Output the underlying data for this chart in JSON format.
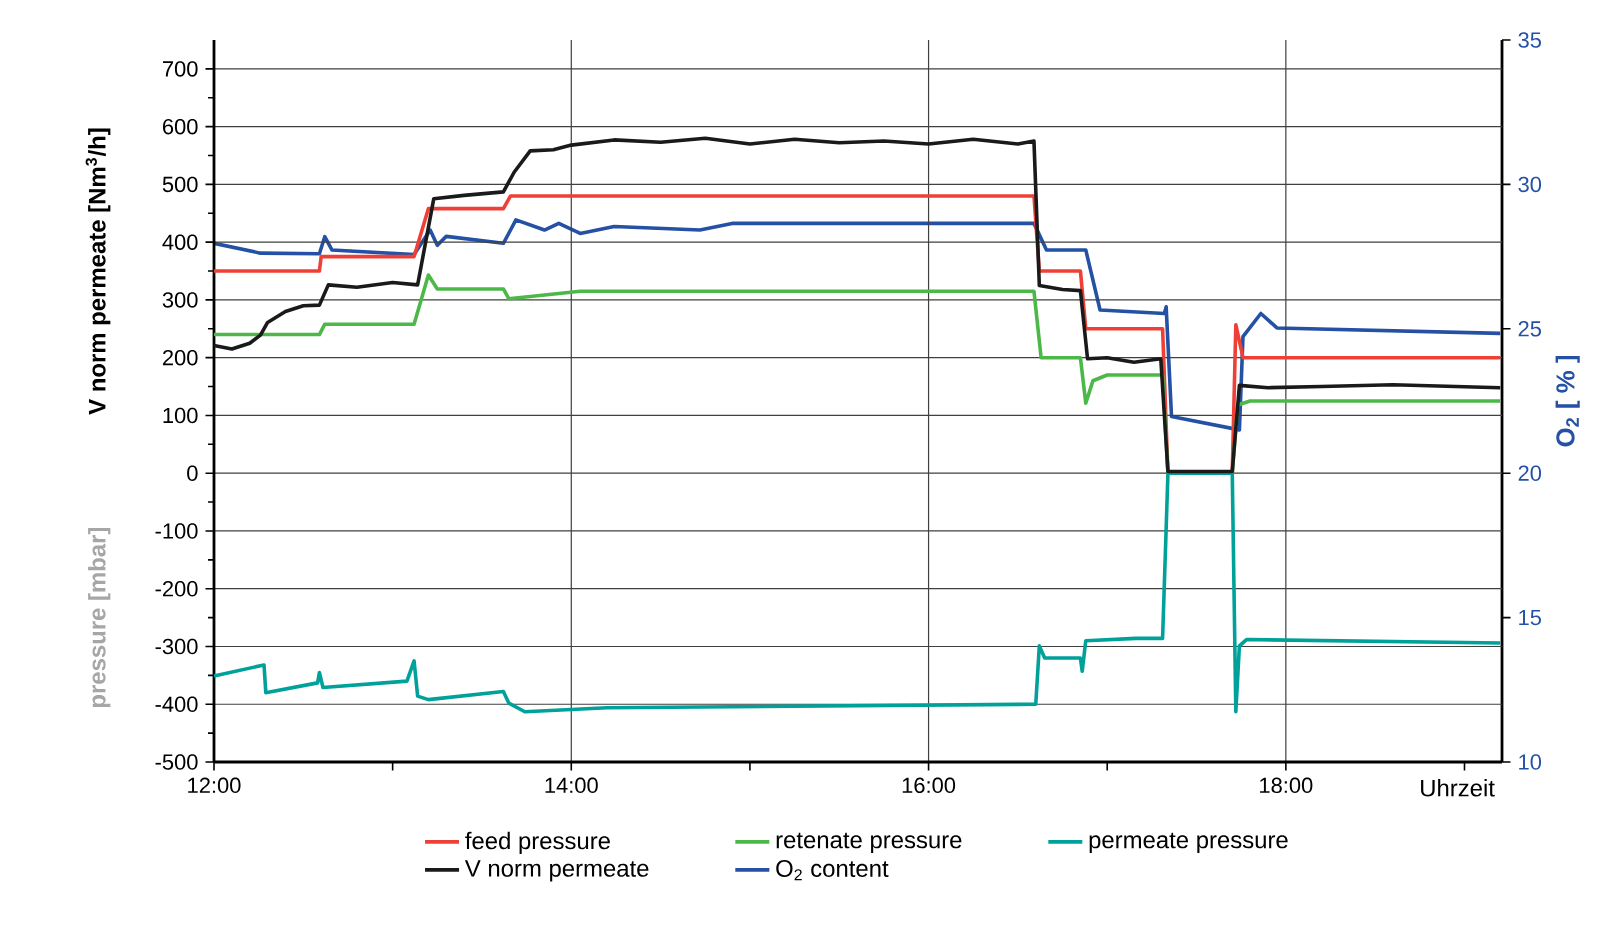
{
  "chart_data": {
    "type": "line",
    "xlabel": "Uhrzeit",
    "ylabel": "V norm permeate [Nm$^{3}$/h]",
    "y2label": "O$_{2}$ [ % ]",
    "annotations": [
      "pressure [mbar]"
    ],
    "xlim": [
      12,
      19.21
    ],
    "xticks": [
      {
        "value": 12,
        "label": "12:00"
      },
      {
        "value": 13,
        "label": null
      },
      {
        "value": 14,
        "label": "14:00"
      },
      {
        "value": 15,
        "label": null
      },
      {
        "value": 16,
        "label": "16:00"
      },
      {
        "value": 17,
        "label": null
      },
      {
        "value": 18,
        "label": "18:00"
      },
      {
        "value": 19,
        "label": null
      }
    ],
    "ylim": [
      -500,
      750
    ],
    "yticks": [
      -500,
      {
        "value": -450,
        "label": null
      },
      -400,
      {
        "value": -350,
        "label": null
      },
      -300,
      {
        "value": -250,
        "label": null
      },
      -200,
      {
        "value": -150,
        "label": null
      },
      -100,
      {
        "value": -50,
        "label": null
      },
      0,
      {
        "value": 50,
        "label": null
      },
      100,
      {
        "value": 150,
        "label": null
      },
      200,
      {
        "value": 250,
        "label": null
      },
      300,
      {
        "value": 350,
        "label": null
      },
      400,
      {
        "value": 450,
        "label": null
      },
      500,
      {
        "value": 550,
        "label": null
      },
      600,
      {
        "value": 650,
        "label": null
      },
      700
    ],
    "y2lim": [
      10,
      35
    ],
    "y2ticks": [
      10,
      15,
      20,
      25,
      30,
      35
    ],
    "grid": true,
    "legend": "bottom",
    "series": [
      {
        "name": "feed pressure",
        "color": "#ee4036",
        "x": [
          12,
          12.59,
          12.6,
          13.12,
          13.2,
          13.62,
          13.66,
          16.59,
          16.62,
          16.85,
          16.88,
          17.31,
          17.34,
          17.7,
          17.72,
          17.76,
          19.2
        ],
        "values": [
          350,
          350,
          375,
          375,
          458,
          458,
          480,
          480,
          350,
          350,
          250,
          250,
          0,
          0,
          257,
          200,
          200
        ]
      },
      {
        "name": "retenate pressure",
        "color": "#4cb848",
        "x": [
          12,
          12.59,
          12.62,
          13.12,
          13.2,
          13.25,
          13.62,
          13.65,
          14.05,
          16.59,
          16.63,
          16.85,
          16.88,
          16.92,
          17.0,
          17.31,
          17.34,
          17.7,
          17.73,
          17.8,
          19.2
        ],
        "values": [
          240,
          240,
          258,
          258,
          343,
          319,
          319,
          302,
          315,
          315,
          200,
          200,
          121,
          160,
          170,
          170,
          0,
          0,
          118,
          125,
          125
        ]
      },
      {
        "name": "permeate pressure",
        "color": "#00a19a",
        "x": [
          12,
          12.28,
          12.29,
          12.58,
          12.59,
          12.61,
          13.08,
          13.12,
          13.14,
          13.2,
          13.62,
          13.65,
          13.74,
          14.2,
          16.6,
          16.62,
          16.65,
          16.85,
          16.86,
          16.88,
          17.16,
          17.31,
          17.34,
          17.7,
          17.72,
          17.74,
          17.78,
          19.2
        ],
        "values": [
          -351,
          -332,
          -380,
          -363,
          -345,
          -371,
          -360,
          -325,
          -386,
          -392,
          -378,
          -398,
          -413,
          -406,
          -400,
          -299,
          -320,
          -320,
          -343,
          -290,
          -286,
          -286,
          0,
          0,
          -413,
          -299,
          -288,
          -294
        ]
      },
      {
        "name": "V norm permeate",
        "color": "#1a1a1a",
        "x": [
          12,
          12.1,
          12.2,
          12.26,
          12.3,
          12.4,
          12.5,
          12.59,
          12.64,
          12.8,
          13.0,
          13.14,
          13.23,
          13.4,
          13.62,
          13.68,
          13.77,
          13.9,
          14.0,
          14.24,
          14.5,
          14.75,
          15.0,
          15.25,
          15.5,
          15.75,
          16.0,
          16.25,
          16.5,
          16.59,
          16.62,
          16.75,
          16.85,
          16.89,
          17.0,
          17.15,
          17.3,
          17.34,
          17.7,
          17.74,
          17.9,
          18.2,
          18.6,
          19.2
        ],
        "values": [
          221,
          215,
          225,
          239,
          261,
          280,
          290,
          291,
          326,
          322,
          330,
          326,
          475,
          481,
          487,
          521,
          558,
          560,
          568,
          577,
          573,
          580,
          570,
          578,
          572,
          575,
          570,
          578,
          570,
          575,
          325,
          318,
          316,
          198,
          200,
          192,
          198,
          3,
          3,
          152,
          148,
          150,
          153,
          148
        ]
      },
      {
        "name": "O$_{2}$ content",
        "color": "#2451a4",
        "axis": "y2",
        "x": [
          12,
          12.26,
          12.59,
          12.62,
          12.66,
          13.12,
          13.21,
          13.25,
          13.3,
          13.62,
          13.69,
          13.85,
          13.93,
          14.05,
          14.24,
          14.72,
          14.9,
          16.59,
          16.66,
          16.88,
          16.96,
          17.32,
          17.33,
          17.36,
          17.74,
          17.76,
          17.86,
          17.95,
          19.2
        ],
        "values": [
          27.96,
          27.62,
          27.6,
          28.19,
          27.73,
          27.57,
          28.42,
          27.89,
          28.2,
          27.96,
          28.77,
          28.42,
          28.65,
          28.3,
          28.54,
          28.42,
          28.65,
          28.65,
          27.73,
          27.73,
          25.65,
          25.53,
          25.76,
          21.96,
          21.5,
          24.73,
          25.53,
          25.03,
          24.84
        ]
      }
    ]
  }
}
